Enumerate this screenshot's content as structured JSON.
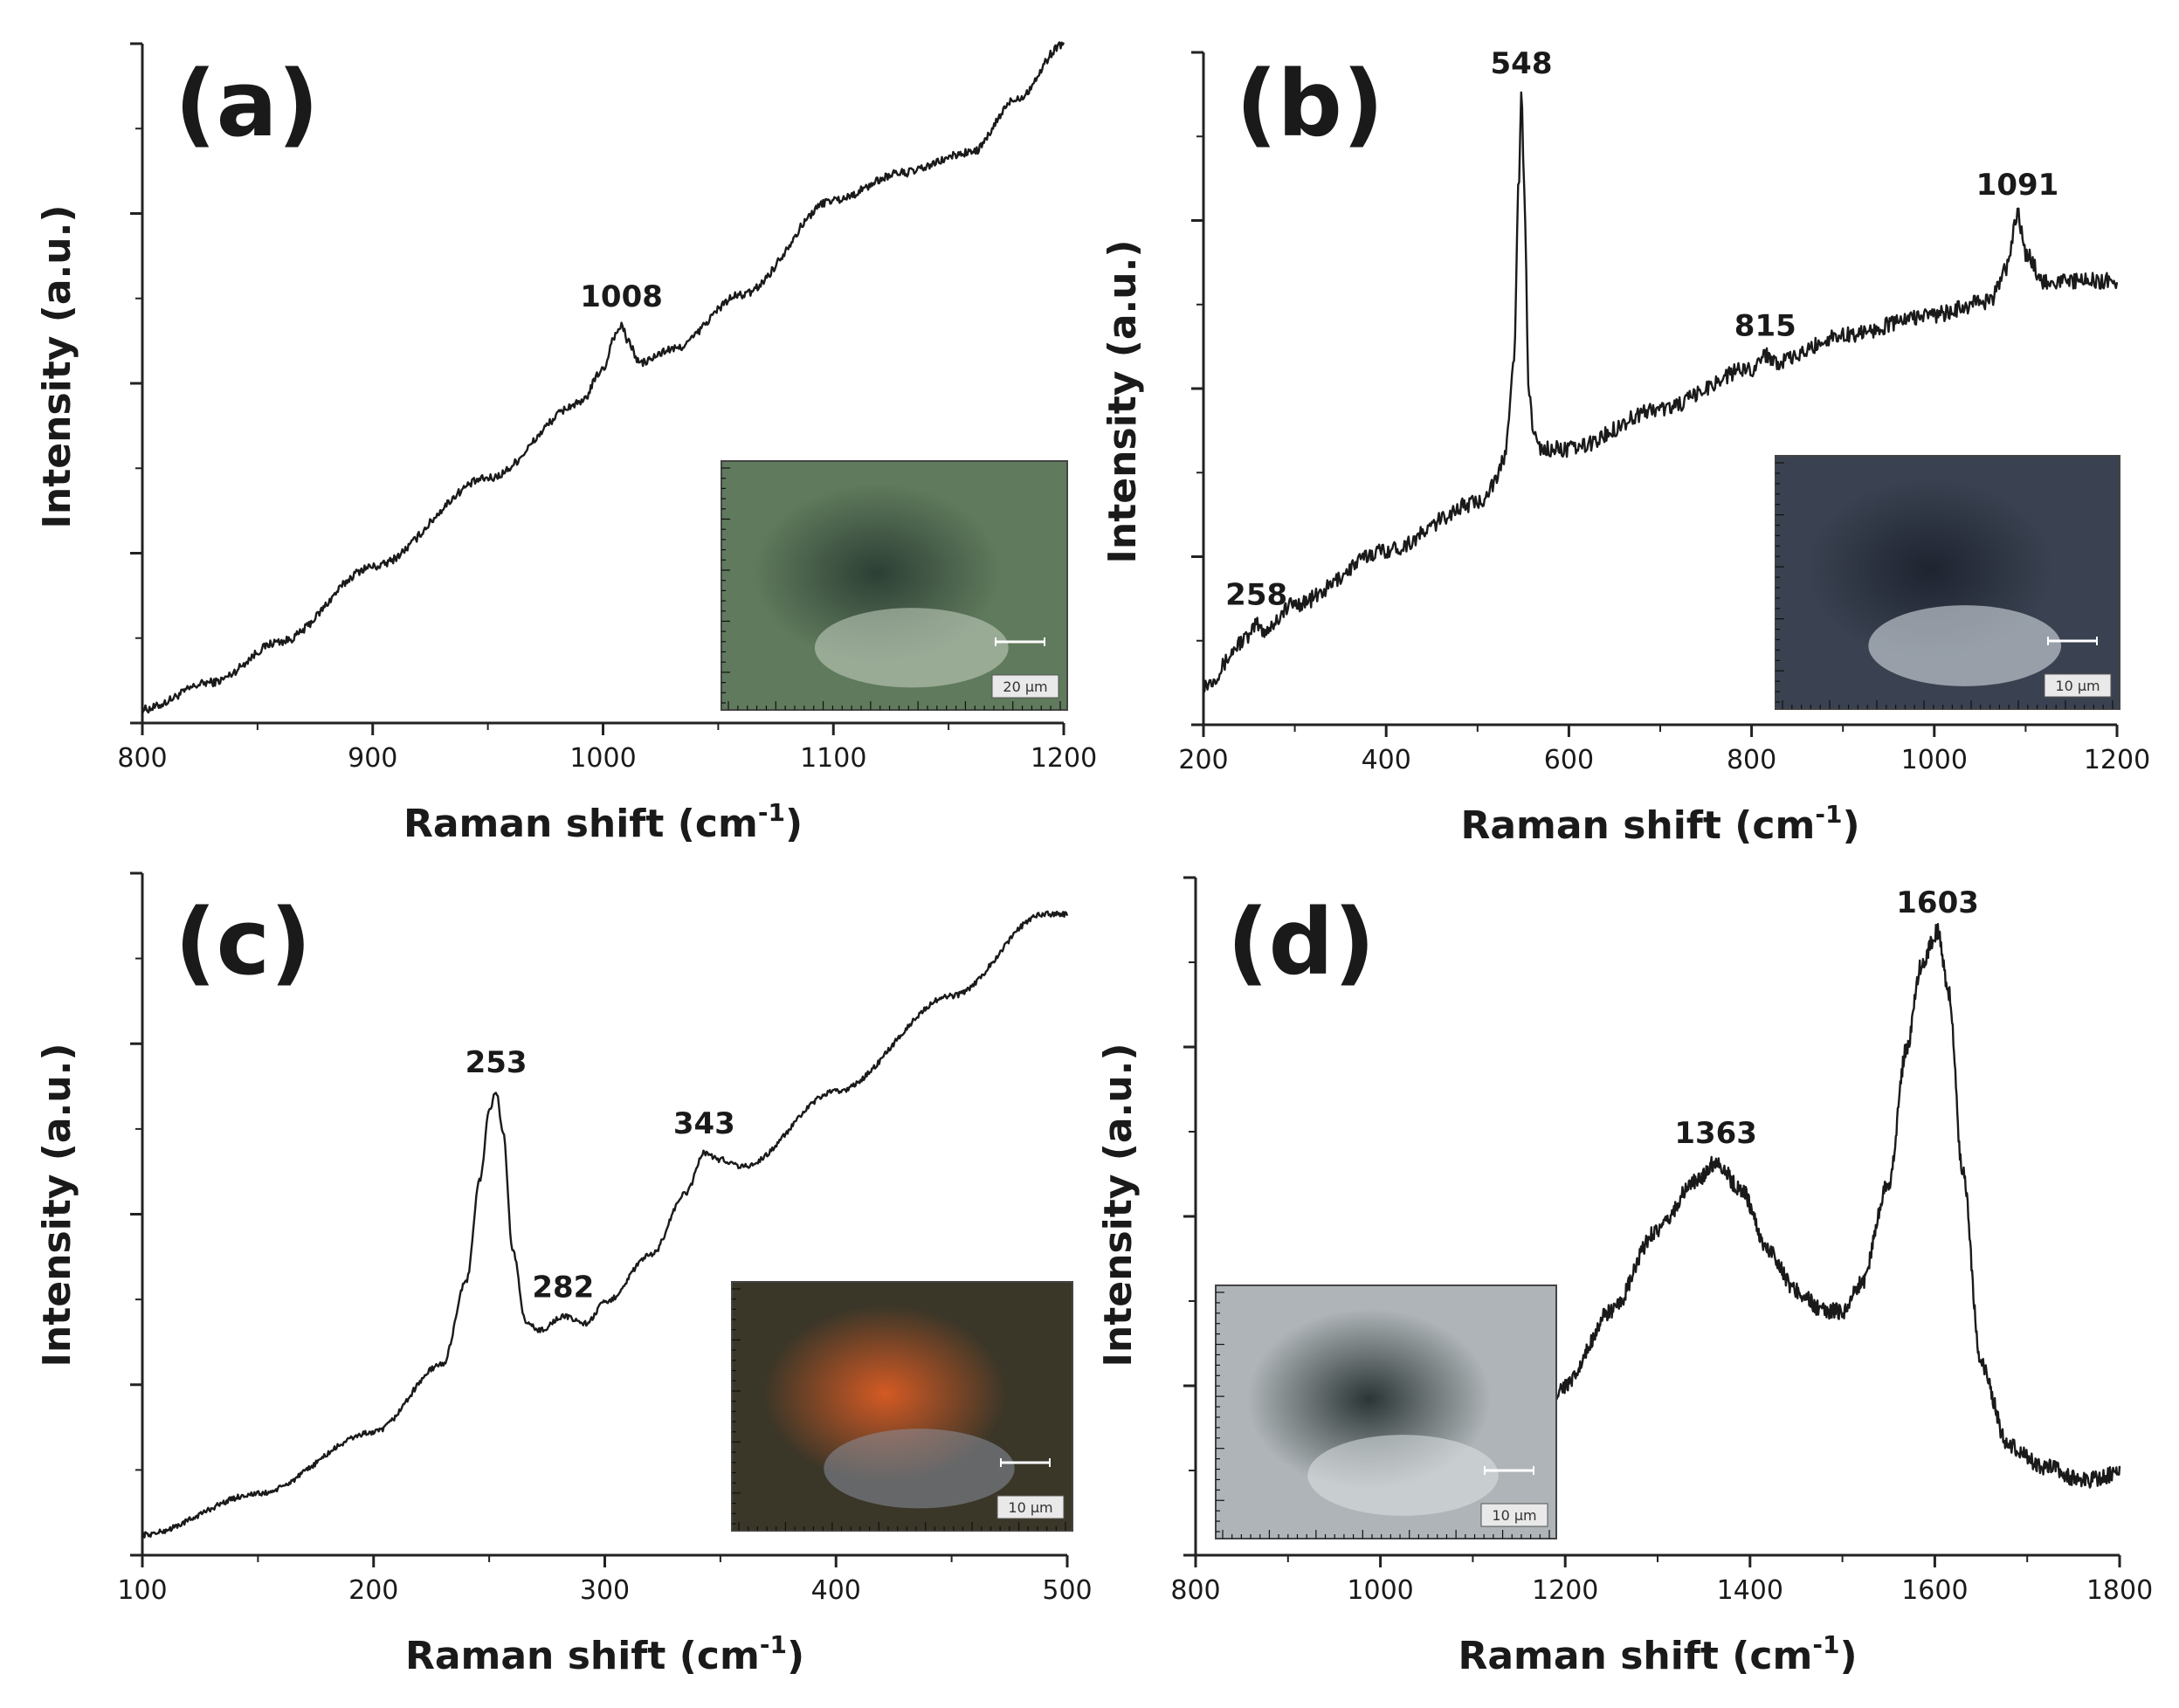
{
  "figure": {
    "panels": [
      {
        "label": "(a)",
        "xlabel": "Raman shift (cm",
        "xlabel_sup": "-1",
        "xlabel_end": ")",
        "ylabel": "Intensity (a.u.)"
      },
      {
        "label": "(b)",
        "xlabel": "Raman shift (cm",
        "xlabel_sup": "-1",
        "xlabel_end": ")",
        "ylabel": "Intensity (a.u.)"
      },
      {
        "label": "(c)",
        "xlabel": "Raman shift (cm",
        "xlabel_sup": "-1",
        "xlabel_end": ")",
        "ylabel": "Intensity (a.u.)"
      },
      {
        "label": "(d)",
        "xlabel": "Raman shift (cm",
        "xlabel_sup": "-1",
        "xlabel_end": ")",
        "ylabel": "Intensity (a.u.)"
      }
    ]
  },
  "chart_data": [
    {
      "type": "line",
      "panel": "(a)",
      "xlabel": "Raman shift (cm-1)",
      "ylabel": "Intensity (a.u.)",
      "xlim": [
        800,
        1200
      ],
      "xticks": [
        800,
        900,
        1000,
        1100,
        1200
      ],
      "ylim": [
        0,
        1
      ],
      "y_tick_labels_shown": false,
      "noise": 0.006,
      "x": [
        800,
        830,
        860,
        900,
        950,
        990,
        1000,
        1005,
        1008,
        1011,
        1016,
        1030,
        1060,
        1100,
        1130,
        1160,
        1180,
        1200
      ],
      "y": [
        0.02,
        0.06,
        0.12,
        0.23,
        0.36,
        0.47,
        0.52,
        0.57,
        0.585,
        0.56,
        0.53,
        0.55,
        0.63,
        0.77,
        0.81,
        0.84,
        0.92,
        1.0
      ],
      "peaks": [
        {
          "x": 1008,
          "label": "1008"
        }
      ],
      "inset": {
        "scale_bar": "20 µm",
        "colors": [
          "#5f7a5c",
          "#2d3f35",
          "#c9d3c4"
        ]
      }
    },
    {
      "type": "line",
      "panel": "(b)",
      "xlabel": "Raman shift (cm-1)",
      "ylabel": "Intensity (a.u.)",
      "xlim": [
        200,
        1200
      ],
      "xticks": [
        200,
        400,
        600,
        800,
        1000,
        1200
      ],
      "ylim": [
        0,
        1
      ],
      "y_tick_labels_shown": false,
      "noise": 0.012,
      "x": [
        200,
        250,
        258,
        265,
        300,
        400,
        500,
        520,
        530,
        540,
        545,
        548,
        551,
        556,
        562,
        570,
        600,
        700,
        800,
        815,
        830,
        900,
        1000,
        1060,
        1080,
        1091,
        1100,
        1120,
        1200
      ],
      "y": [
        0.06,
        0.13,
        0.15,
        0.14,
        0.18,
        0.26,
        0.33,
        0.36,
        0.4,
        0.55,
        0.8,
        0.94,
        0.8,
        0.5,
        0.43,
        0.41,
        0.41,
        0.47,
        0.53,
        0.55,
        0.54,
        0.58,
        0.61,
        0.63,
        0.68,
        0.76,
        0.7,
        0.66,
        0.66
      ],
      "peaks": [
        {
          "x": 258,
          "label": "258"
        },
        {
          "x": 548,
          "label": "548"
        },
        {
          "x": 815,
          "label": "815"
        },
        {
          "x": 1091,
          "label": "1091"
        }
      ],
      "inset": {
        "scale_bar": "10 µm",
        "colors": [
          "#3a4150",
          "#1e2430",
          "#e6ecf2"
        ]
      }
    },
    {
      "type": "line",
      "panel": "(c)",
      "xlabel": "Raman shift (cm-1)",
      "ylabel": "Intensity (a.u.)",
      "xlim": [
        100,
        500
      ],
      "xticks": [
        100,
        200,
        300,
        400,
        500
      ],
      "ylim": [
        0,
        1
      ],
      "y_tick_labels_shown": false,
      "noise": 0.004,
      "x": [
        100,
        150,
        200,
        230,
        240,
        246,
        250,
        253,
        256,
        260,
        266,
        272,
        282,
        292,
        300,
        320,
        335,
        343,
        350,
        360,
        400,
        450,
        490,
        500
      ],
      "y": [
        0.03,
        0.09,
        0.18,
        0.28,
        0.4,
        0.55,
        0.65,
        0.68,
        0.62,
        0.45,
        0.34,
        0.33,
        0.35,
        0.34,
        0.37,
        0.44,
        0.53,
        0.59,
        0.58,
        0.57,
        0.68,
        0.82,
        0.94,
        0.94
      ],
      "peaks": [
        {
          "x": 253,
          "label": "253"
        },
        {
          "x": 282,
          "label": "282"
        },
        {
          "x": 343,
          "label": "343"
        }
      ],
      "inset": {
        "scale_bar": "10 µm",
        "colors": [
          "#3a3628",
          "#d45a24",
          "#8a8f9c"
        ]
      }
    },
    {
      "type": "line",
      "panel": "(d)",
      "xlabel": "Raman shift (cm-1)",
      "ylabel": "Intensity (a.u.)",
      "xlim": [
        800,
        1800
      ],
      "xticks": [
        800,
        1000,
        1200,
        1400,
        1600,
        1800
      ],
      "ylim": [
        0,
        1
      ],
      "y_tick_labels_shown": false,
      "noise": 0.012,
      "x": [
        1170,
        1200,
        1250,
        1300,
        1340,
        1363,
        1390,
        1420,
        1450,
        1480,
        1500,
        1520,
        1550,
        1570,
        1585,
        1603,
        1615,
        1630,
        1650,
        1680,
        1720,
        1760,
        1800
      ],
      "y": [
        0.19,
        0.25,
        0.36,
        0.48,
        0.55,
        0.58,
        0.54,
        0.45,
        0.39,
        0.36,
        0.36,
        0.4,
        0.55,
        0.75,
        0.87,
        0.92,
        0.83,
        0.57,
        0.28,
        0.16,
        0.13,
        0.11,
        0.12
      ],
      "peaks": [
        {
          "x": 1363,
          "label": "1363"
        },
        {
          "x": 1603,
          "label": "1603"
        }
      ],
      "inset": {
        "scale_bar": "10 µm",
        "colors": [
          "#aeb4b7",
          "#2b3535",
          "#dfe4e6"
        ]
      }
    }
  ]
}
